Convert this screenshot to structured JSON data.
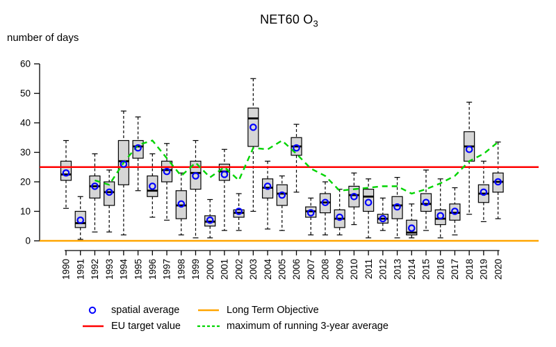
{
  "title": {
    "main": "NET60 O",
    "sub": "3"
  },
  "y_axis": {
    "label": "number of days",
    "ticks": [
      0,
      10,
      20,
      30,
      40,
      50,
      60
    ],
    "range": [
      0,
      60
    ]
  },
  "legend": {
    "items": [
      {
        "label": "spatial average",
        "symbol": "open-circle",
        "color": "#0000ff"
      },
      {
        "label": "EU target value",
        "symbol": "line",
        "color": "#ff0000"
      },
      {
        "label": "Long Term Objective",
        "symbol": "line",
        "color": "#ffa500"
      },
      {
        "label": "maximum of running 3-year average",
        "symbol": "dashed-line",
        "color": "#00d400"
      }
    ]
  },
  "chart_data": {
    "type": "boxplot",
    "title": "NET60 O3",
    "ylabel": "number of days",
    "ylim": [
      0,
      60
    ],
    "grid": false,
    "colors": {
      "box_fill": "#d6d6d6",
      "box_border": "#000000",
      "mean_point": "#0000ff",
      "eu_target": "#ff0000",
      "long_term_objective": "#ffa500",
      "running_average": "#00d400"
    },
    "categories": [
      "1990",
      "1991",
      "1992",
      "1993",
      "1994",
      "1995",
      "1996",
      "1997",
      "1998",
      "1999",
      "2000",
      "2001",
      "2002",
      "2003",
      "2004",
      "2005",
      "2006",
      "2007",
      "2008",
      "2009",
      "2010",
      "2011",
      "2012",
      "2013",
      "2014",
      "2015",
      "2016",
      "2017",
      "2018",
      "2019",
      "2020"
    ],
    "boxes": [
      {
        "year": "1990",
        "low": 11,
        "q1": 20.5,
        "median": 22.5,
        "q3": 27,
        "high": 34,
        "mean": 23
      },
      {
        "year": "1991",
        "low": 0.5,
        "q1": 4.5,
        "median": 6,
        "q3": 10,
        "high": 15,
        "mean": 7
      },
      {
        "year": "1992",
        "low": 3,
        "q1": 14.5,
        "median": 18.5,
        "q3": 22,
        "high": 29.5,
        "mean": 18.5
      },
      {
        "year": "1993",
        "low": 3,
        "q1": 12,
        "median": 16.5,
        "q3": 20,
        "high": 24,
        "mean": 16.5
      },
      {
        "year": "1994",
        "low": 2,
        "q1": 19,
        "median": 27,
        "q3": 34,
        "high": 44,
        "mean": 26
      },
      {
        "year": "1995",
        "low": 17,
        "q1": 28,
        "median": 32,
        "q3": 34,
        "high": 42,
        "mean": 31.5
      },
      {
        "year": "1996",
        "low": 8,
        "q1": 15,
        "median": 17,
        "q3": 22,
        "high": 29.5,
        "mean": 18.5
      },
      {
        "year": "1997",
        "low": 7,
        "q1": 20,
        "median": 24,
        "q3": 27,
        "high": 33,
        "mean": 23.5
      },
      {
        "year": "1998",
        "low": 2,
        "q1": 7.5,
        "median": 12,
        "q3": 17,
        "high": 23,
        "mean": 12.5
      },
      {
        "year": "1999",
        "low": 1,
        "q1": 17.5,
        "median": 23,
        "q3": 27,
        "high": 34,
        "mean": 22
      },
      {
        "year": "2000",
        "low": 1,
        "q1": 5,
        "median": 6.5,
        "q3": 8.5,
        "high": 14,
        "mean": 7
      },
      {
        "year": "2001",
        "low": 3.5,
        "q1": 20.5,
        "median": 23.5,
        "q3": 26,
        "high": 31,
        "mean": 22.5
      },
      {
        "year": "2002",
        "low": 3.5,
        "q1": 8,
        "median": 9.5,
        "q3": 10.5,
        "high": 16,
        "mean": 10
      },
      {
        "year": "2003",
        "low": 10,
        "q1": 32,
        "median": 41.5,
        "q3": 45,
        "high": 55,
        "mean": 38.5
      },
      {
        "year": "2004",
        "low": 4,
        "q1": 14.5,
        "median": 18,
        "q3": 21,
        "high": 27,
        "mean": 18.5
      },
      {
        "year": "2005",
        "low": 3.5,
        "q1": 12,
        "median": 16,
        "q3": 19,
        "high": 22,
        "mean": 15.5
      },
      {
        "year": "2006",
        "low": 16.5,
        "q1": 29,
        "median": 32,
        "q3": 35,
        "high": 39.5,
        "mean": 31.5
      },
      {
        "year": "2007",
        "low": 2,
        "q1": 8,
        "median": 10,
        "q3": 11.5,
        "high": 14.5,
        "mean": 9.5
      },
      {
        "year": "2008",
        "low": 2,
        "q1": 9.5,
        "median": 13,
        "q3": 16,
        "high": 20,
        "mean": 13
      },
      {
        "year": "2009",
        "low": 2,
        "q1": 4.5,
        "median": 7.5,
        "q3": 10.5,
        "high": 17.5,
        "mean": 8
      },
      {
        "year": "2010",
        "low": 5.5,
        "q1": 11.5,
        "median": 15.5,
        "q3": 18.5,
        "high": 23,
        "mean": 15
      },
      {
        "year": "2011",
        "low": 1,
        "q1": 10,
        "median": 15,
        "q3": 17.5,
        "high": 21,
        "mean": 13
      },
      {
        "year": "2012",
        "low": 3.5,
        "q1": 6,
        "median": 7.5,
        "q3": 9,
        "high": 14.5,
        "mean": 7.5
      },
      {
        "year": "2013",
        "low": 1,
        "q1": 7.5,
        "median": 12,
        "q3": 15,
        "high": 21.5,
        "mean": 11.5
      },
      {
        "year": "2014",
        "low": 1,
        "q1": 2,
        "median": 2.8,
        "q3": 7,
        "high": 12.5,
        "mean": 4.3
      },
      {
        "year": "2015",
        "low": 3.5,
        "q1": 10,
        "median": 12.5,
        "q3": 16,
        "high": 24,
        "mean": 13
      },
      {
        "year": "2016",
        "low": 1,
        "q1": 5.5,
        "median": 7.5,
        "q3": 10.5,
        "high": 21,
        "mean": 8.5
      },
      {
        "year": "2017",
        "low": 2,
        "q1": 7,
        "median": 9.5,
        "q3": 12.5,
        "high": 18,
        "mean": 10
      },
      {
        "year": "2018",
        "low": 9,
        "q1": 27,
        "median": 32,
        "q3": 37,
        "high": 47,
        "mean": 31
      },
      {
        "year": "2019",
        "low": 6.5,
        "q1": 13,
        "median": 16,
        "q3": 19,
        "high": 27,
        "mean": 16.5
      },
      {
        "year": "2020",
        "low": 7.5,
        "q1": 16.5,
        "median": 20,
        "q3": 23,
        "high": 33.5,
        "mean": 20
      }
    ],
    "series": [
      {
        "name": "spatial average",
        "type": "point",
        "color": "#0000ff"
      },
      {
        "name": "EU target value",
        "type": "hline",
        "color": "#ff0000",
        "value": 25
      },
      {
        "name": "Long Term Objective",
        "type": "hline",
        "color": "#ffa500",
        "value": 0
      },
      {
        "name": "maximum of running 3-year average",
        "type": "dashed-line",
        "color": "#00d400",
        "start_year": 1992,
        "values": [
          20.5,
          19,
          26.5,
          32.5,
          34,
          28,
          22,
          26.5,
          21.5,
          25,
          20.5,
          31.5,
          31,
          34,
          29.5,
          24.5,
          22,
          17,
          17.5,
          18,
          18.5,
          18.5,
          16,
          17.5,
          19.5,
          22,
          27,
          29.5,
          33.5
        ]
      }
    ]
  }
}
